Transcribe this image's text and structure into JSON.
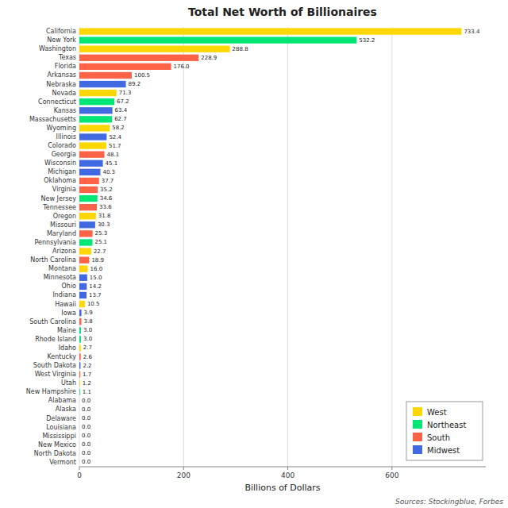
{
  "chart_data": {
    "type": "bar",
    "orientation": "horizontal",
    "stacked": true,
    "title": "Total Net Worth of Billionaires",
    "x_label": "Billions of Dollars",
    "source": "Sources: Stockingblue, Forbes",
    "categories": [
      "California",
      "New York",
      "Washington",
      "Texas",
      "Florida",
      "Arkansas",
      "Nebraska",
      "Nevada",
      "Connecticut",
      "Kansas",
      "Massachusetts",
      "Wyoming",
      "Illinois",
      "Colorado",
      "Georgia",
      "Wisconsin",
      "Michigan",
      "Oklahoma",
      "Virginia",
      "New Jersey",
      "Tennessee",
      "Oregon",
      "Missouri",
      "Maryland",
      "Pennsylvania",
      "Arizona",
      "North Carolina",
      "Montana",
      "Minnesota",
      "Ohio",
      "Indiana",
      "Hawaii",
      "Iowa",
      "South Carolina",
      "Maine",
      "Rhode Island",
      "Idaho",
      "Kentucky",
      "South Dakota",
      "West Virginia",
      "Utah",
      "New Hampshire",
      "Alabama",
      "Alaska",
      "Delaware",
      "Louisiana",
      "Mississippi",
      "New Mexico",
      "North Dakota",
      "Vermont"
    ],
    "series": [
      {
        "name": "West",
        "color": "#FFD700",
        "values": [
          733.4,
          null,
          288.8,
          null,
          null,
          null,
          null,
          71.3,
          null,
          null,
          null,
          58.2,
          null,
          51.7,
          null,
          null,
          null,
          null,
          null,
          null,
          null,
          31.8,
          null,
          null,
          null,
          22.7,
          null,
          16.0,
          null,
          null,
          null,
          10.5,
          null,
          null,
          null,
          null,
          2.7,
          null,
          null,
          null,
          1.2,
          null,
          null,
          0.0,
          null,
          null,
          null,
          0.0,
          null,
          null
        ],
        "value_labels": [
          "733.4",
          null,
          "288.8",
          null,
          null,
          null,
          null,
          "71.3",
          null,
          null,
          null,
          "58.2",
          null,
          "51.7",
          null,
          null,
          null,
          null,
          null,
          null,
          null,
          "31.8",
          null,
          null,
          null,
          "22.7",
          null,
          "16.0",
          null,
          null,
          null,
          "10.5",
          null,
          null,
          null,
          null,
          "2.7",
          null,
          null,
          null,
          "1.2",
          null,
          null,
          "0.0",
          null,
          null,
          null,
          "0.0",
          null,
          null
        ]
      },
      {
        "name": "Northeast",
        "color": "#00E676",
        "values": [
          null,
          532.2,
          null,
          null,
          null,
          null,
          null,
          null,
          67.2,
          null,
          62.7,
          null,
          null,
          null,
          null,
          null,
          null,
          null,
          null,
          34.6,
          null,
          null,
          null,
          null,
          25.1,
          null,
          null,
          null,
          null,
          null,
          null,
          null,
          null,
          null,
          3.0,
          3.0,
          null,
          null,
          null,
          null,
          null,
          1.1,
          null,
          null,
          0.0,
          null,
          null,
          null,
          null,
          0.0
        ],
        "value_labels": [
          null,
          "532.2",
          null,
          null,
          null,
          null,
          null,
          null,
          "67.2",
          null,
          "62.7",
          null,
          null,
          null,
          null,
          null,
          null,
          null,
          null,
          "34.6",
          null,
          null,
          null,
          null,
          "25.1",
          null,
          null,
          null,
          null,
          null,
          null,
          null,
          null,
          null,
          "3.0",
          "3.0",
          null,
          null,
          null,
          null,
          null,
          "1.1",
          null,
          null,
          "0.0",
          null,
          null,
          null,
          null,
          "0.0"
        ]
      },
      {
        "name": "South",
        "color": "#FF6347",
        "values": [
          null,
          null,
          null,
          228.9,
          176.0,
          100.5,
          null,
          null,
          null,
          null,
          null,
          null,
          null,
          null,
          48.1,
          null,
          null,
          37.7,
          35.2,
          null,
          33.6,
          null,
          null,
          25.3,
          null,
          null,
          18.9,
          null,
          null,
          null,
          null,
          null,
          null,
          3.8,
          null,
          null,
          null,
          2.6,
          null,
          1.7,
          null,
          null,
          0.0,
          null,
          null,
          0.0,
          0.0,
          null,
          null,
          null
        ],
        "value_labels": [
          null,
          null,
          null,
          "228.9",
          "176.0",
          "100.5",
          null,
          null,
          null,
          null,
          null,
          null,
          null,
          null,
          "48.1",
          null,
          null,
          "37.7",
          "35.2",
          null,
          "33.6",
          null,
          null,
          "25.3",
          null,
          null,
          "18.9",
          null,
          null,
          null,
          null,
          null,
          null,
          "3.8",
          null,
          null,
          null,
          "2.6",
          null,
          "1.7",
          null,
          null,
          "0.0",
          null,
          null,
          "0.0",
          "0.0",
          null,
          null,
          null
        ]
      },
      {
        "name": "Midwest",
        "color": "#4169E1",
        "values": [
          null,
          null,
          null,
          null,
          null,
          null,
          89.2,
          null,
          null,
          63.4,
          null,
          null,
          52.4,
          null,
          null,
          45.1,
          40.3,
          null,
          null,
          null,
          null,
          null,
          30.3,
          null,
          null,
          null,
          null,
          null,
          15.0,
          14.2,
          13.7,
          null,
          3.9,
          null,
          null,
          null,
          null,
          null,
          2.2,
          null,
          null,
          null,
          null,
          null,
          null,
          null,
          null,
          null,
          0.0,
          null
        ],
        "value_labels": [
          null,
          null,
          null,
          null,
          null,
          null,
          "89.2",
          null,
          null,
          "63.4",
          null,
          null,
          "52.4",
          null,
          null,
          "45.1",
          "40.3",
          null,
          null,
          null,
          null,
          null,
          "30.3",
          null,
          null,
          null,
          null,
          null,
          "15.0",
          "14.2",
          "13.7",
          null,
          "3.9",
          null,
          null,
          null,
          null,
          null,
          "2.2",
          null,
          null,
          null,
          null,
          null,
          null,
          null,
          null,
          null,
          "0.0",
          null
        ]
      }
    ],
    "xlim": [
      0,
      780
    ],
    "xticks": [
      0,
      200,
      400,
      600
    ],
    "grid": true,
    "legend": "lower right",
    "data_labels": true
  }
}
